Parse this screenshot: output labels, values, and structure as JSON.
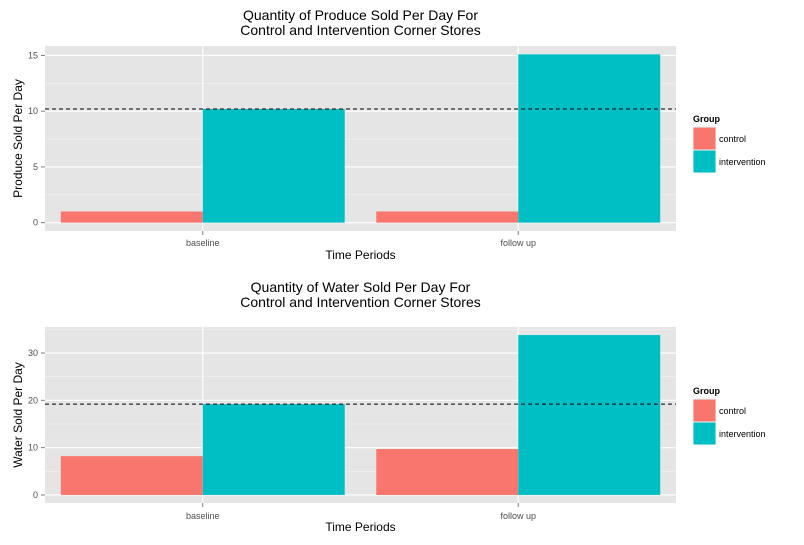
{
  "chart_data": [
    {
      "type": "bar",
      "title": "Quantity of Produce Sold Per Day For\nControl and Intervention Corner Stores",
      "xlabel": "Time Periods",
      "ylabel": "Produce Sold Per Day",
      "categories": [
        "baseline",
        "follow up"
      ],
      "series": [
        {
          "name": "control",
          "values": [
            1.0,
            1.0
          ]
        },
        {
          "name": "intervention",
          "values": [
            10.2,
            15.1
          ]
        }
      ],
      "ylim": [
        -0.75,
        15.85
      ],
      "yticks": [
        0,
        5,
        10,
        15
      ],
      "reference_line": {
        "y": 10.2,
        "style": "dashed"
      },
      "legend": {
        "title": "Group",
        "position": "right"
      },
      "grid": true
    },
    {
      "type": "bar",
      "title": "Quantity of Water Sold Per Day For\nControl and Intervention Corner Stores",
      "xlabel": "Time Periods",
      "ylabel": "Water Sold Per Day",
      "categories": [
        "baseline",
        "follow up"
      ],
      "series": [
        {
          "name": "control",
          "values": [
            8.2,
            9.7
          ]
        },
        {
          "name": "intervention",
          "values": [
            19.2,
            33.8
          ]
        }
      ],
      "ylim": [
        -1.7,
        35.5
      ],
      "yticks": [
        0,
        10,
        20,
        30
      ],
      "reference_line": {
        "y": 19.2,
        "style": "dashed"
      },
      "legend": {
        "title": "Group",
        "position": "right"
      },
      "grid": true
    }
  ],
  "colors": {
    "control": "#F8766D",
    "intervention": "#00BFC4",
    "panel_background": "#E5E5E5",
    "gridline": "#FFFFFF"
  }
}
